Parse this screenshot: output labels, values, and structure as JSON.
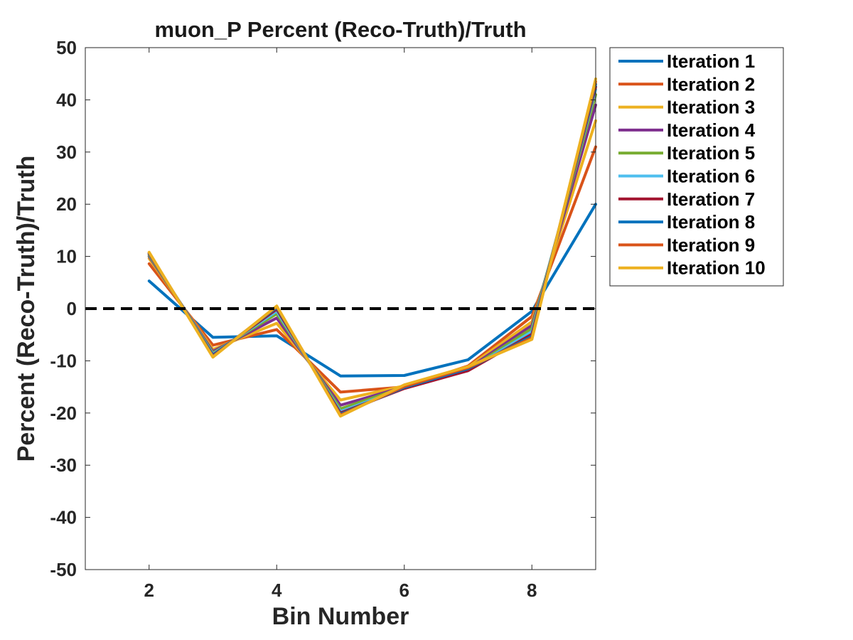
{
  "chart_data": {
    "type": "line",
    "title": "muon_P Percent (Reco-Truth)/Truth",
    "xlabel": "Bin Number",
    "ylabel": "Percent (Reco-Truth)/Truth",
    "xlim": [
      1,
      9
    ],
    "ylim": [
      -50,
      50
    ],
    "xticks": [
      2,
      4,
      6,
      8
    ],
    "yticks": [
      -50,
      -40,
      -30,
      -20,
      -10,
      0,
      10,
      20,
      30,
      40,
      50
    ],
    "grid": false,
    "legend_position": "outside-top-right",
    "reference_line": {
      "y": 0,
      "style": "dashed",
      "color": "#000000"
    },
    "x": [
      2,
      3,
      4,
      5,
      6,
      7,
      8,
      9
    ],
    "series": [
      {
        "name": "Iteration 1",
        "color": "#0072BD",
        "values": [
          5.3,
          -5.5,
          -5.2,
          -12.9,
          -12.8,
          -9.8,
          -0.5,
          20.0
        ]
      },
      {
        "name": "Iteration 2",
        "color": "#D95319",
        "values": [
          8.6,
          -7.0,
          -4.0,
          -16.0,
          -15.0,
          -11.0,
          -1.5,
          31.0
        ]
      },
      {
        "name": "Iteration 3",
        "color": "#EDB120",
        "values": [
          9.6,
          -7.8,
          -2.8,
          -17.5,
          -14.8,
          -11.2,
          -2.5,
          36.0
        ]
      },
      {
        "name": "Iteration 4",
        "color": "#7E2F8E",
        "values": [
          10.0,
          -8.2,
          -1.8,
          -18.5,
          -15.0,
          -11.5,
          -3.2,
          39.0
        ]
      },
      {
        "name": "Iteration 5",
        "color": "#77AC30",
        "values": [
          10.2,
          -8.5,
          -1.0,
          -19.2,
          -15.0,
          -11.7,
          -3.8,
          41.0
        ]
      },
      {
        "name": "Iteration 6",
        "color": "#4DBEEE",
        "values": [
          10.4,
          -8.7,
          -0.5,
          -19.7,
          -15.2,
          -11.8,
          -4.4,
          42.0
        ]
      },
      {
        "name": "Iteration 7",
        "color": "#A2142F",
        "values": [
          10.5,
          -8.9,
          -0.1,
          -20.0,
          -15.3,
          -11.9,
          -4.9,
          42.5
        ]
      },
      {
        "name": "Iteration 8",
        "color": "#0072BD",
        "values": [
          10.6,
          -9.0,
          0.2,
          -20.2,
          -15.1,
          -11.5,
          -5.3,
          43.0
        ]
      },
      {
        "name": "Iteration 9",
        "color": "#D95319",
        "values": [
          10.7,
          -9.2,
          0.4,
          -20.4,
          -14.9,
          -11.3,
          -5.6,
          43.5
        ]
      },
      {
        "name": "Iteration 10",
        "color": "#EDB120",
        "values": [
          10.8,
          -9.3,
          0.5,
          -20.6,
          -14.6,
          -11.1,
          -5.9,
          44.0
        ]
      }
    ]
  }
}
